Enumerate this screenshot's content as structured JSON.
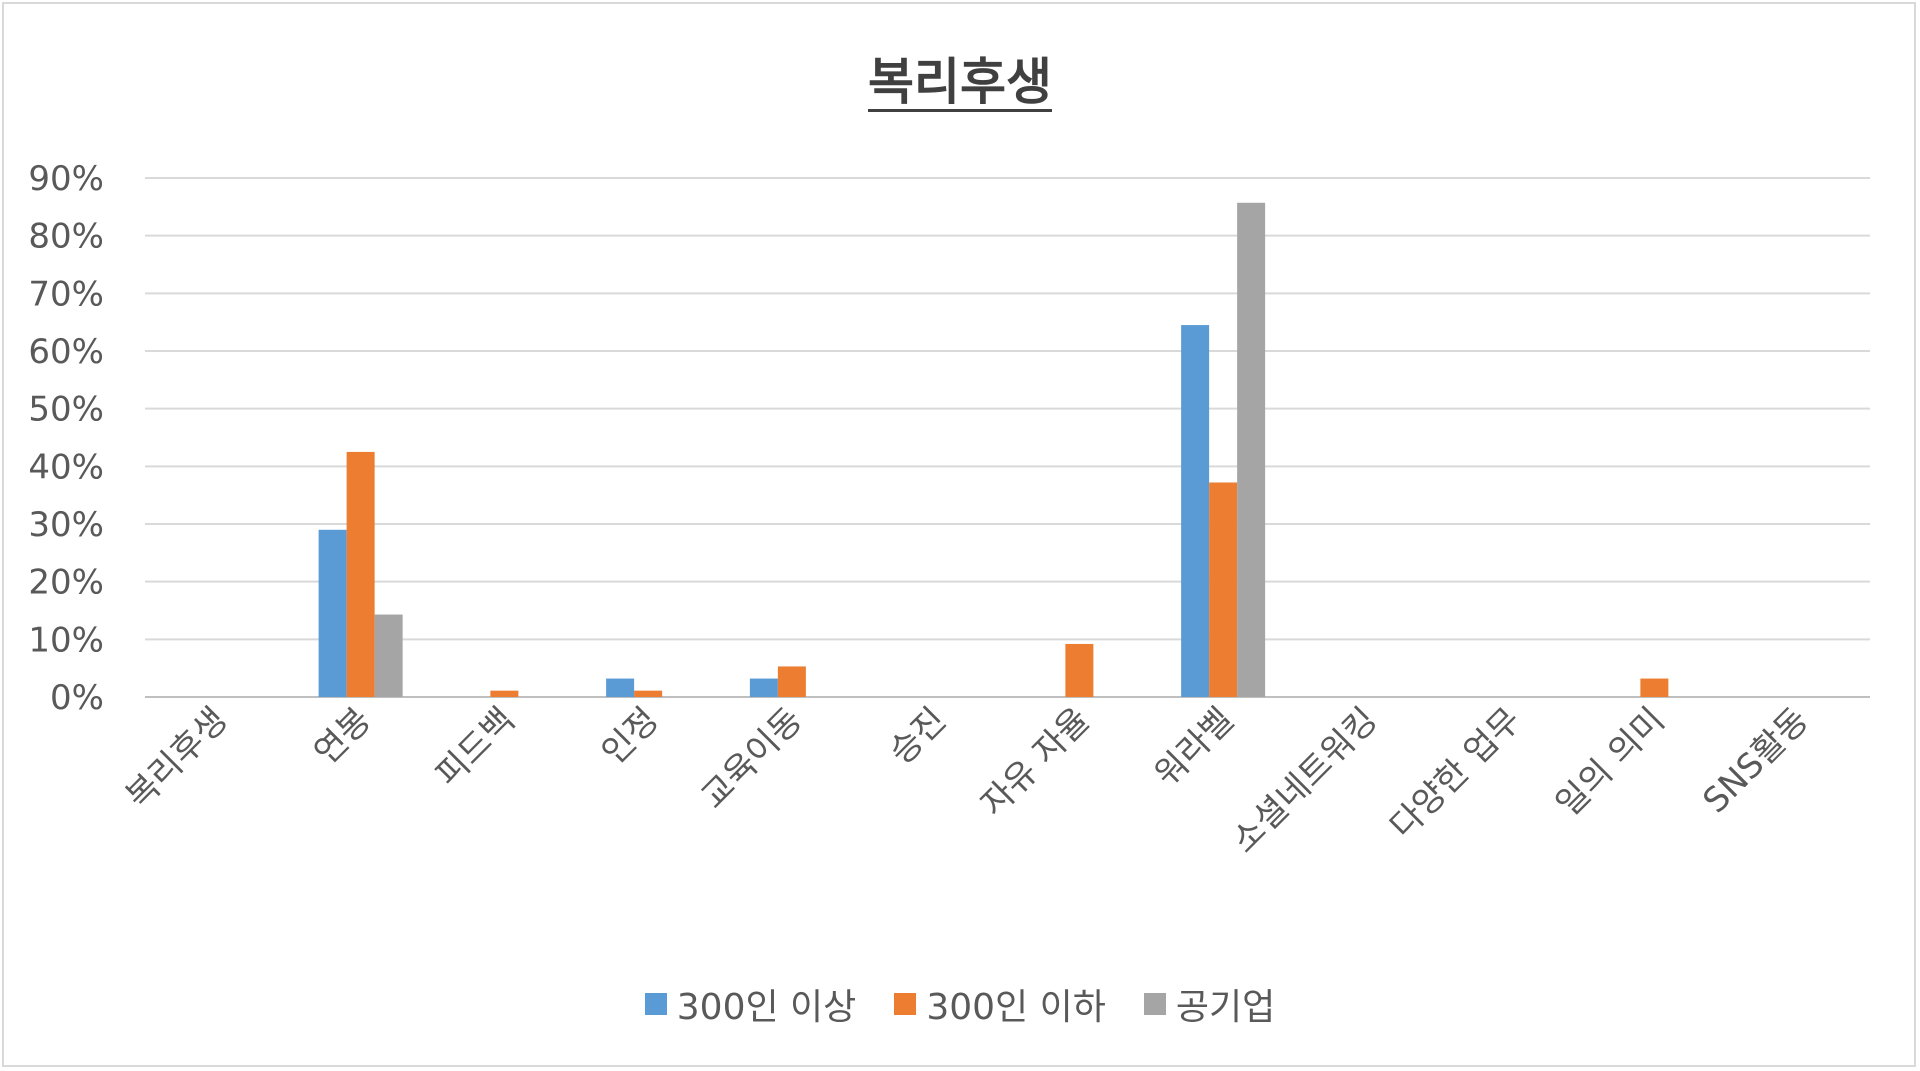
{
  "chart_data": {
    "type": "bar",
    "title": "복리후생",
    "categories": [
      "복리후생",
      "연봉",
      "피드백",
      "인정",
      "교육이동",
      "승진",
      "자유 자율",
      "워라벨",
      "소셜네트워킹",
      "다양한 업무",
      "일의 의미",
      "SNS활동"
    ],
    "series": [
      {
        "name": "300인 이상",
        "color": "#5b9bd5",
        "values": [
          0,
          29,
          0,
          3.2,
          3.2,
          0,
          0,
          64.5,
          0,
          0,
          0,
          0
        ]
      },
      {
        "name": "300인 이하",
        "color": "#ed7d31",
        "values": [
          0,
          42.5,
          1.1,
          1.1,
          5.3,
          0,
          9.2,
          37.2,
          0,
          0,
          3.2,
          0
        ]
      },
      {
        "name": "공기업",
        "color": "#a5a5a5",
        "values": [
          0,
          14.3,
          0,
          0,
          0,
          0,
          0,
          85.7,
          0,
          0,
          0,
          0
        ]
      }
    ],
    "yticks": [
      "0%",
      "10%",
      "20%",
      "30%",
      "40%",
      "50%",
      "60%",
      "70%",
      "80%",
      "90%"
    ],
    "ylim": [
      0,
      90
    ],
    "grid": true,
    "legend_position": "bottom"
  }
}
